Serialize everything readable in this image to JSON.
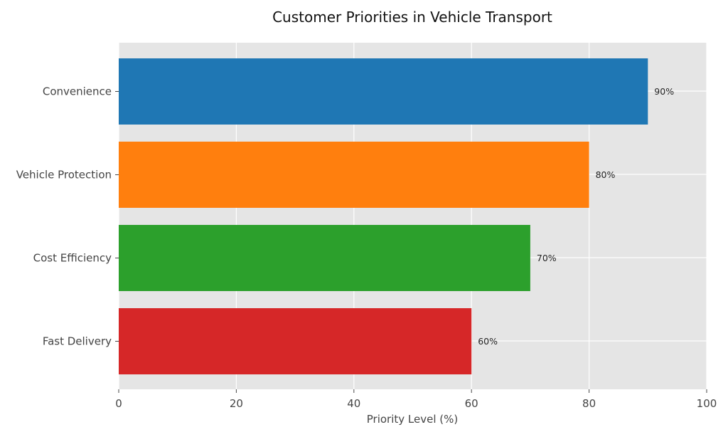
{
  "chart_data": {
    "type": "bar",
    "orientation": "horizontal",
    "title": "Customer Priorities in Vehicle Transport",
    "xlabel": "Priority Level (%)",
    "ylabel": "",
    "categories": [
      "Convenience",
      "Vehicle Protection",
      "Cost Efficiency",
      "Fast Delivery"
    ],
    "values": [
      90,
      80,
      70,
      60
    ],
    "data_labels": [
      "90%",
      "80%",
      "70%",
      "60%"
    ],
    "colors": [
      "#1f77b4",
      "#ff7f0e",
      "#2ca02c",
      "#d62728"
    ],
    "xlim": [
      0,
      100
    ],
    "xticks": [
      0,
      20,
      40,
      60,
      80,
      100
    ],
    "grid": true,
    "background": "#e5e5e5"
  }
}
